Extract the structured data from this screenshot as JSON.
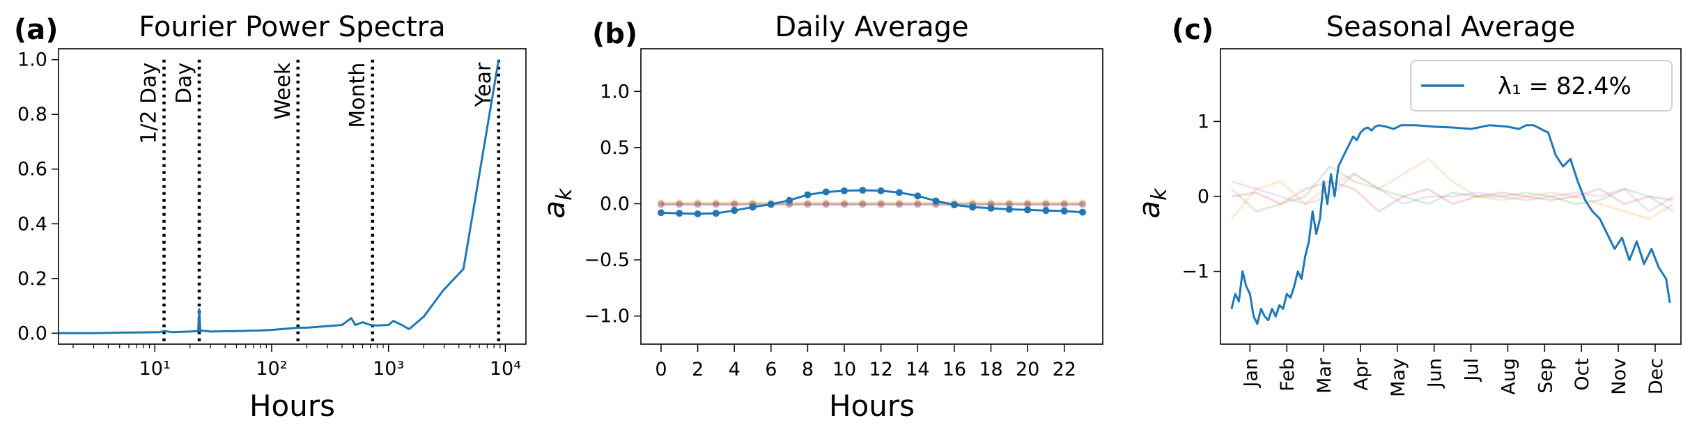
{
  "chart_data": [
    {
      "panel": "(a)",
      "type": "line",
      "title": "Fourier Power Spectra",
      "xlabel": "Hours",
      "ylabel": "",
      "xscale": "log",
      "xlim": [
        1.5,
        15000
      ],
      "ylim": [
        -0.04,
        1.04
      ],
      "xticks": [
        {
          "value": 10,
          "label": "10¹"
        },
        {
          "value": 100,
          "label": "10²"
        },
        {
          "value": 1000,
          "label": "10³"
        },
        {
          "value": 10000,
          "label": "10⁴"
        }
      ],
      "yticks": [
        0.0,
        0.2,
        0.4,
        0.6,
        0.8,
        1.0
      ],
      "ytick_labels": [
        "0.0",
        "0.2",
        "0.4",
        "0.6",
        "0.8",
        "1.0"
      ],
      "color": "#1f77b4",
      "series": [
        {
          "x": [
            1.5,
            3,
            5,
            8,
            11,
            12,
            14,
            20,
            23.5,
            24,
            24.5,
            30,
            50,
            80,
            100,
            130,
            168,
            200,
            300,
            400,
            480,
            520,
            600,
            700,
            800,
            1000,
            1100,
            1300,
            1500,
            2000,
            2920,
            4380,
            8760
          ],
          "y": [
            0.0,
            0.0,
            0.002,
            0.003,
            0.004,
            0.008,
            0.004,
            0.006,
            0.008,
            0.088,
            0.01,
            0.006,
            0.008,
            0.01,
            0.012,
            0.016,
            0.02,
            0.02,
            0.026,
            0.03,
            0.055,
            0.03,
            0.04,
            0.03,
            0.028,
            0.03,
            0.045,
            0.03,
            0.015,
            0.06,
            0.155,
            0.235,
            1.0
          ]
        }
      ],
      "vlines": [
        {
          "x": 12,
          "label": "1/2 Day"
        },
        {
          "x": 24,
          "label": "Day"
        },
        {
          "x": 168,
          "label": "Week"
        },
        {
          "x": 730,
          "label": "Month"
        },
        {
          "x": 8760,
          "label": "Year"
        }
      ]
    },
    {
      "panel": "(b)",
      "type": "line",
      "title": "Daily Average",
      "xlabel": "Hours",
      "ylabel": "a_k",
      "xlim": [
        -1.1,
        24.1
      ],
      "ylim": [
        -1.25,
        1.38
      ],
      "xticks": [
        0,
        2,
        4,
        6,
        8,
        10,
        12,
        14,
        16,
        18,
        20,
        22
      ],
      "yticks": [
        -1.0,
        -0.5,
        0.0,
        0.5,
        1.0
      ],
      "ytick_labels": [
        "−1.0",
        "−0.5",
        "0.0",
        "0.5",
        "1.0"
      ],
      "x": [
        0,
        1,
        2,
        3,
        4,
        5,
        6,
        7,
        8,
        9,
        10,
        11,
        12,
        13,
        14,
        15,
        16,
        17,
        18,
        19,
        20,
        21,
        22,
        23
      ],
      "series": [
        {
          "color": "#1f77b4",
          "values": [
            -0.08,
            -0.085,
            -0.09,
            -0.085,
            -0.06,
            -0.03,
            -0.005,
            0.03,
            0.08,
            0.105,
            0.115,
            0.12,
            0.115,
            0.1,
            0.07,
            0.025,
            -0.01,
            -0.03,
            -0.04,
            -0.05,
            -0.055,
            -0.06,
            -0.065,
            -0.075
          ]
        },
        {
          "color": "#ff7f0e",
          "faded": true,
          "values": [
            0.01,
            0.01,
            0.01,
            0.01,
            0.01,
            0.01,
            0.01,
            0.01,
            0.01,
            0.01,
            0.01,
            0.01,
            0.01,
            0.01,
            0.01,
            0.01,
            0.01,
            0.01,
            0.01,
            0.01,
            0.01,
            0.01,
            0.01,
            0.01
          ]
        },
        {
          "color": "#2ca02c",
          "faded": true,
          "values": [
            0.0,
            0.0,
            0.0,
            0.0,
            0.0,
            0.0,
            0.0,
            0.0,
            0.0,
            0.0,
            0.0,
            0.0,
            0.0,
            0.0,
            0.0,
            0.0,
            0.0,
            0.0,
            0.0,
            0.0,
            0.0,
            0.0,
            0.0,
            0.0
          ]
        },
        {
          "color": "#d62728",
          "faded": true,
          "values": [
            -0.005,
            -0.005,
            -0.005,
            -0.005,
            -0.005,
            -0.005,
            -0.005,
            -0.005,
            -0.005,
            -0.005,
            -0.005,
            -0.005,
            -0.005,
            -0.005,
            -0.005,
            -0.005,
            -0.005,
            -0.005,
            -0.005,
            -0.005,
            -0.005,
            -0.005,
            -0.005,
            -0.005
          ]
        },
        {
          "color": "#9467bd",
          "faded": true,
          "values": [
            -0.01,
            -0.01,
            -0.01,
            -0.01,
            -0.01,
            -0.01,
            -0.01,
            -0.01,
            -0.01,
            -0.01,
            -0.01,
            -0.01,
            -0.01,
            -0.01,
            -0.01,
            -0.01,
            -0.01,
            -0.01,
            -0.01,
            -0.01,
            -0.01,
            -0.01,
            -0.01,
            -0.01
          ]
        }
      ]
    },
    {
      "panel": "(c)",
      "type": "line",
      "title": "Seasonal Average",
      "xlabel": "",
      "ylabel": "a_k",
      "xlim": [
        -0.3,
        12.2
      ],
      "ylim": [
        -1.97,
        1.97
      ],
      "xticks": [
        "Jan",
        "Feb",
        "Mar",
        "Apr",
        "May",
        "Jun",
        "Jul",
        "Aug",
        "Sep",
        "Oct",
        "Nov",
        "Dec"
      ],
      "yticks": [
        -1,
        0,
        1
      ],
      "ytick_labels": [
        "−1",
        "0",
        "1"
      ],
      "legend": {
        "label": "λ₁ = 82.4%",
        "location": "upper right"
      },
      "main": {
        "color": "#1f77b4",
        "x": [
          0,
          0.1,
          0.2,
          0.3,
          0.4,
          0.5,
          0.6,
          0.7,
          0.8,
          0.9,
          1.0,
          1.1,
          1.2,
          1.3,
          1.4,
          1.5,
          1.6,
          1.7,
          1.8,
          1.9,
          2.0,
          2.1,
          2.2,
          2.3,
          2.4,
          2.5,
          2.6,
          2.7,
          2.8,
          2.9,
          3.0,
          3.1,
          3.2,
          3.3,
          3.4,
          3.5,
          3.6,
          3.7,
          3.8,
          3.9,
          4.0,
          4.2,
          4.4,
          4.6,
          4.8,
          5.0,
          5.5,
          6.0,
          6.5,
          7.0,
          7.5,
          7.8,
          8.0,
          8.2,
          8.4,
          8.6,
          8.8,
          9.0,
          9.2,
          9.4,
          9.6,
          9.8,
          10.0,
          10.2,
          10.4,
          10.6,
          10.8,
          11.0,
          11.2,
          11.4,
          11.6,
          11.8,
          11.9
        ],
        "values": [
          -1.5,
          -1.3,
          -1.4,
          -1.0,
          -1.2,
          -1.3,
          -1.6,
          -1.7,
          -1.5,
          -1.6,
          -1.65,
          -1.5,
          -1.6,
          -1.45,
          -1.5,
          -1.3,
          -1.35,
          -1.2,
          -1.0,
          -1.1,
          -0.8,
          -0.6,
          -0.2,
          -0.5,
          -0.3,
          0.2,
          -0.1,
          0.3,
          0.0,
          0.4,
          0.5,
          0.6,
          0.7,
          0.8,
          0.75,
          0.85,
          0.9,
          0.92,
          0.88,
          0.93,
          0.95,
          0.93,
          0.9,
          0.95,
          0.95,
          0.95,
          0.93,
          0.92,
          0.9,
          0.95,
          0.93,
          0.9,
          0.95,
          0.95,
          0.9,
          0.85,
          0.55,
          0.4,
          0.5,
          0.2,
          -0.05,
          -0.2,
          -0.3,
          -0.5,
          -0.7,
          -0.55,
          -0.85,
          -0.6,
          -0.9,
          -0.7,
          -0.95,
          -1.1,
          -1.42
        ]
      },
      "faded_series": [
        {
          "color": "#ff7f0e",
          "values": [
            -0.3,
            0.1,
            0.2,
            -0.1,
            0.15,
            0.3,
            0.1,
            0.3,
            0.5,
            0.2,
            0.0,
            -0.05,
            0.0,
            0.05,
            0.0,
            -0.1,
            -0.2,
            -0.3,
            -0.1
          ]
        },
        {
          "color": "#2ca02c",
          "values": [
            0.1,
            -0.2,
            -0.1,
            0.0,
            0.4,
            0.2,
            0.1,
            0.0,
            -0.1,
            0.05,
            0.0,
            0.0,
            0.05,
            0.0,
            -0.1,
            -0.05,
            0.1,
            0.0,
            -0.2
          ]
        },
        {
          "color": "#d62728",
          "values": [
            0.0,
            0.05,
            -0.1,
            0.1,
            0.2,
            0.1,
            -0.2,
            0.0,
            0.1,
            -0.1,
            0.0,
            0.05,
            0.0,
            -0.05,
            0.0,
            0.1,
            -0.1,
            0.0,
            -0.05
          ]
        },
        {
          "color": "#9467bd",
          "values": [
            0.2,
            0.1,
            0.0,
            -0.1,
            0.0,
            0.3,
            0.1,
            -0.1,
            0.0,
            0.0,
            0.05,
            0.0,
            -0.05,
            0.0,
            0.05,
            0.0,
            0.1,
            -0.2,
            0.0
          ]
        }
      ]
    }
  ]
}
